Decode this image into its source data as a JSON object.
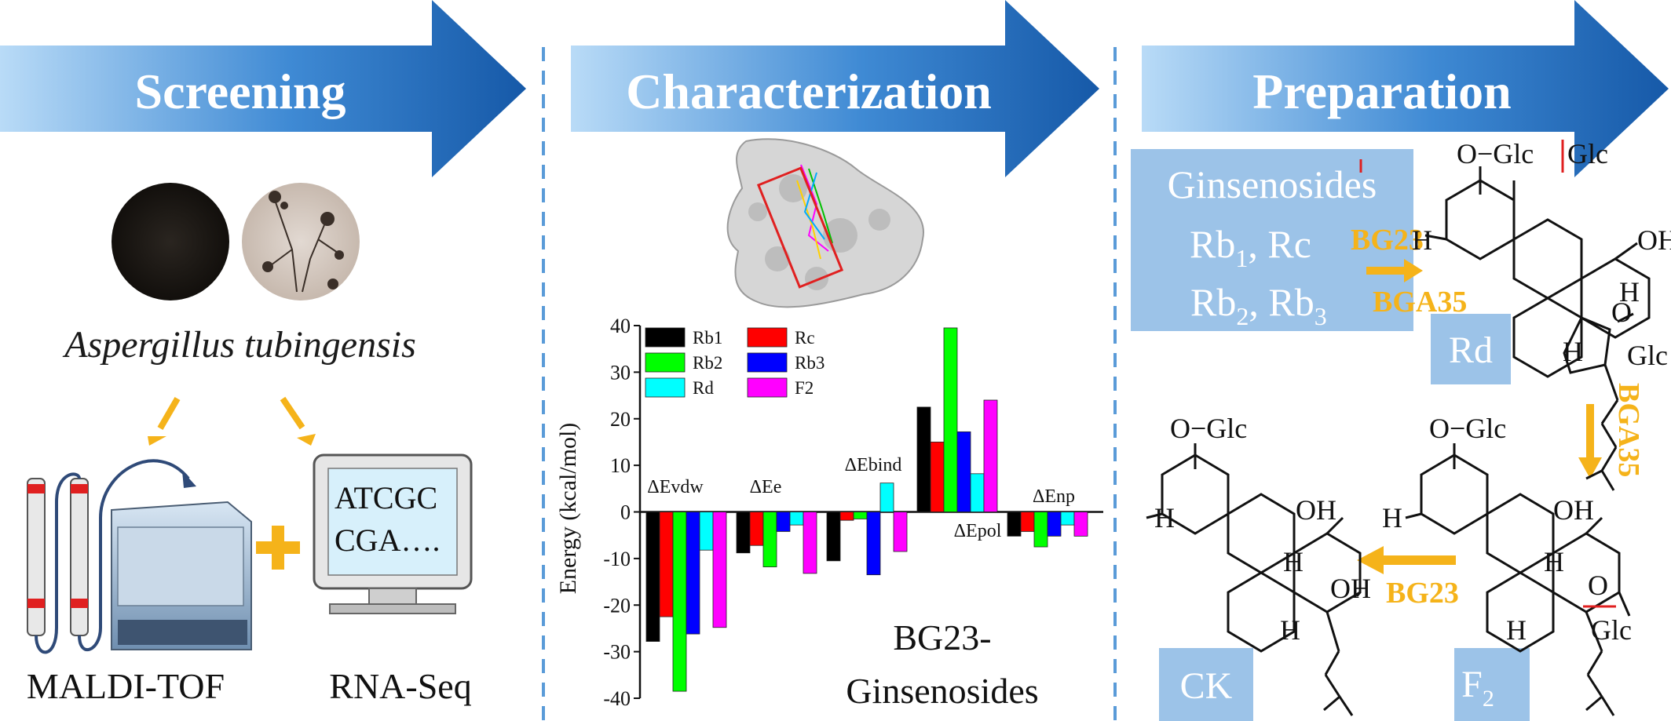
{
  "banners": {
    "screening": "Screening",
    "characterization": "Characterization",
    "preparation": "Preparation"
  },
  "screening": {
    "organism": "Aspergillus tubingensis",
    "method_left": "MALDI-TOF",
    "method_right": "RNA-Seq",
    "monitor_line1": "ATCGC",
    "monitor_line2": "CGA….",
    "plus": "+"
  },
  "characterization": {
    "caption_line1": "BG23-",
    "caption_line2": "Ginsenosides"
  },
  "chart_data": {
    "type": "bar",
    "ylabel": "Energy (kcal/mol)",
    "ylim": [
      -40,
      40
    ],
    "yticks": [
      40,
      30,
      20,
      10,
      0,
      -10,
      -20,
      -30,
      -40
    ],
    "categories": [
      "ΔEvdw",
      "ΔEe",
      "ΔEbind",
      "ΔEpol",
      "ΔEnp"
    ],
    "legend_position": "top-left",
    "series": [
      {
        "name": "Rb1",
        "color": "#000000",
        "values": [
          -27.8,
          -8.8,
          -10.5,
          22.5,
          -5.2
        ]
      },
      {
        "name": "Rc",
        "color": "#ff0000",
        "values": [
          -22.5,
          -7.2,
          -1.8,
          15.0,
          -4.2
        ]
      },
      {
        "name": "Rb2",
        "color": "#00ff00",
        "values": [
          -38.5,
          -11.8,
          -1.5,
          39.5,
          -7.5
        ]
      },
      {
        "name": "Rb3",
        "color": "#0000ff",
        "values": [
          -26.2,
          -4.2,
          -13.5,
          17.2,
          -5.2
        ]
      },
      {
        "name": "Rd",
        "color": "#00ffff",
        "values": [
          -8.2,
          -2.8,
          6.2,
          8.2,
          -2.8
        ]
      },
      {
        "name": "F2",
        "color": "#ff00ff",
        "values": [
          -24.8,
          -13.2,
          -8.5,
          24.0,
          -5.2
        ]
      }
    ]
  },
  "preparation": {
    "box_title": "Ginsenosides",
    "box_line2_a": "Rb",
    "box_line2_a_sub": "1",
    "box_line2_b": ", Rc",
    "box_line3_a": "Rb",
    "box_line3_a_sub": "2",
    "box_line3_b": ", Rb",
    "box_line3_b_sub": "3",
    "enzyme_bg23": "BG23",
    "enzyme_bga35": "BGA35",
    "label_rd": "Rd",
    "label_ck": "CK",
    "label_f2": "F",
    "label_f2_sub": "2",
    "rd_sugar": "O−Glc",
    "rd_sugar2": "Glc",
    "f2_sugar": "O−Glc",
    "ck_sugar": "O−Glc",
    "glc": "Glc",
    "oh": "OH",
    "h": "H",
    "o": "O"
  },
  "colors": {
    "arrow_dark": "#1f6bb8",
    "arrow_light": "#9fcaf0",
    "enzyme": "#f5b31a",
    "label_box": "#9cc3e8",
    "divider": "#5a9bd8"
  }
}
